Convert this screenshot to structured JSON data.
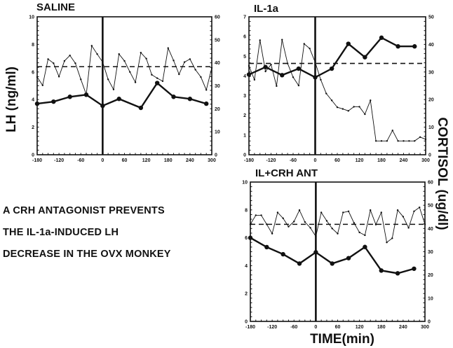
{
  "y_label_left": "LH (ng/ml)",
  "y_label_right": "CORTISOL (ug/dl)",
  "x_label": "TIME(min)",
  "caption": [
    "A CRH ANTAGONIST PREVENTS",
    "THE IL-1a-INDUCED LH",
    "DECREASE  IN THE OVX MONKEY"
  ],
  "chart_data": [
    {
      "type": "line",
      "title": "SALINE",
      "xlim": [
        -180,
        300
      ],
      "xticks": [
        -180,
        -120,
        -60,
        0,
        60,
        120,
        180,
        240,
        300
      ],
      "ylim_left": [
        0,
        10
      ],
      "yticks_left": [
        0,
        2,
        4,
        6,
        8,
        10
      ],
      "ylim_right": [
        0,
        60
      ],
      "yticks_right": [
        0,
        10,
        20,
        30,
        40,
        50,
        60
      ],
      "treatment_time": 0,
      "cortisol_baseline": 38.3,
      "series": [
        {
          "name": "LH",
          "axis": "left",
          "x": [
            -180,
            -135,
            -90,
            -45,
            0,
            45,
            105,
            150,
            195,
            240,
            285
          ],
          "y": [
            3.7,
            3.85,
            4.2,
            4.35,
            3.55,
            4.05,
            3.4,
            5.2,
            4.2,
            4.05,
            3.7
          ]
        },
        {
          "name": "Cortisol",
          "axis": "right",
          "x": [
            -180,
            -165,
            -150,
            -135,
            -120,
            -105,
            -90,
            -75,
            -60,
            -45,
            -30,
            -15,
            0,
            15,
            30,
            45,
            60,
            75,
            90,
            105,
            120,
            135,
            150,
            165,
            180,
            195,
            210,
            225,
            240,
            255,
            270,
            285,
            300
          ],
          "y": [
            33.8,
            30.2,
            41.6,
            39.8,
            34,
            40.8,
            43.2,
            39.8,
            32.8,
            26.2,
            47.4,
            43.8,
            40.3,
            32.8,
            28.4,
            43.8,
            40.8,
            36,
            31.5,
            44.4,
            41.8,
            34.8,
            33.3,
            32,
            46.4,
            41,
            35,
            40.3,
            41.6,
            37,
            33.8,
            28.2,
            37.8
          ]
        }
      ]
    },
    {
      "type": "line",
      "title": "IL-1a",
      "xlim": [
        -180,
        300
      ],
      "xticks": [
        -180,
        -120,
        -60,
        0,
        60,
        120,
        180,
        240,
        300
      ],
      "ylim_left": [
        0,
        7
      ],
      "yticks_left": [
        0,
        1,
        2,
        3,
        4,
        5,
        6,
        7
      ],
      "ylim_right": [
        0,
        50
      ],
      "yticks_right": [
        0,
        10,
        20,
        30,
        40,
        50
      ],
      "treatment_time": 0,
      "cortisol_baseline": 33.1,
      "series": [
        {
          "name": "LH",
          "axis": "left",
          "x": [
            -180,
            -135,
            -90,
            -45,
            0,
            45,
            90,
            135,
            180,
            225,
            270
          ],
          "y": [
            4.07,
            4.45,
            4.04,
            4.37,
            3.93,
            4.37,
            5.63,
            4.95,
            5.94,
            5.5,
            5.5
          ]
        },
        {
          "name": "Cortisol",
          "axis": "right",
          "x": [
            -180,
            -165,
            -150,
            -135,
            -120,
            -105,
            -90,
            -75,
            -60,
            -45,
            -30,
            -15,
            0,
            15,
            30,
            45,
            60,
            75,
            90,
            105,
            120,
            135,
            150,
            165,
            180,
            195,
            210,
            225,
            240,
            255,
            270,
            285,
            300
          ],
          "y": [
            32.2,
            27.2,
            41.5,
            30.2,
            32.7,
            24.9,
            41.7,
            33.1,
            28.1,
            25.1,
            40.2,
            38.5,
            33.5,
            27.2,
            22.2,
            19.7,
            17.2,
            16.6,
            15.9,
            17.4,
            17.4,
            14.7,
            19.7,
            5,
            5,
            5,
            8.8,
            5,
            5,
            5,
            5,
            6.4,
            5.6
          ]
        }
      ]
    },
    {
      "type": "line",
      "title": "IL+CRH ANT",
      "xlim": [
        -180,
        300
      ],
      "xticks": [
        -180,
        -120,
        -60,
        0,
        60,
        120,
        180,
        240,
        300
      ],
      "ylim_left": [
        0,
        10
      ],
      "yticks_left": [
        0,
        2,
        4,
        6,
        8,
        10
      ],
      "ylim_right": [
        0,
        60
      ],
      "yticks_right": [
        0,
        10,
        20,
        30,
        40,
        50,
        60
      ],
      "treatment_time": 0,
      "cortisol_baseline": 41.8,
      "series": [
        {
          "name": "LH",
          "axis": "left",
          "x": [
            -180,
            -135,
            -90,
            -45,
            0,
            45,
            90,
            135,
            180,
            225,
            270
          ],
          "y": [
            6.0,
            5.33,
            4.82,
            4.15,
            4.96,
            4.15,
            4.54,
            5.34,
            3.65,
            3.45,
            3.78
          ]
        },
        {
          "name": "Cortisol",
          "axis": "right",
          "x": [
            -180,
            -165,
            -150,
            -135,
            -120,
            -105,
            -90,
            -75,
            -60,
            -45,
            -30,
            -15,
            0,
            15,
            30,
            45,
            60,
            75,
            90,
            105,
            120,
            135,
            150,
            165,
            180,
            195,
            210,
            225,
            240,
            255,
            270,
            285,
            300
          ],
          "y": [
            41.8,
            45.7,
            45.7,
            41.8,
            37.8,
            46.9,
            44.4,
            40.8,
            43,
            47.9,
            42.8,
            40.3,
            36.6,
            46.9,
            43.3,
            40,
            37.8,
            46.9,
            47.4,
            42.4,
            38.3,
            37.1,
            47.9,
            41.7,
            46.9,
            34,
            35.8,
            47.9,
            45.1,
            40.3,
            47.4,
            49.1,
            41.8
          ]
        }
      ]
    }
  ]
}
